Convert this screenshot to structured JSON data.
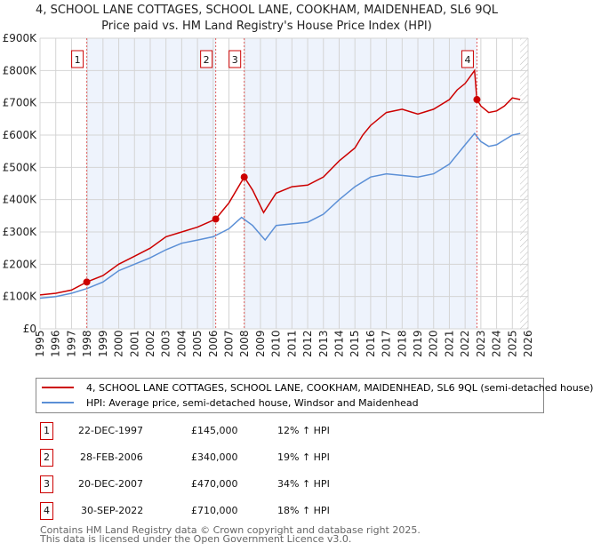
{
  "chart_data": {
    "type": "line",
    "title": "4, SCHOOL LANE COTTAGES, SCHOOL LANE, COOKHAM, MAIDENHEAD, SL6 9QL",
    "subtitle": "Price paid vs. HM Land Registry's House Price Index (HPI)",
    "xlim": [
      1995,
      2026
    ],
    "ylim": [
      0,
      900000
    ],
    "y_ticks": [
      {
        "v": 0,
        "label": "£0"
      },
      {
        "v": 100000,
        "label": "£100K"
      },
      {
        "v": 200000,
        "label": "£200K"
      },
      {
        "v": 300000,
        "label": "£300K"
      },
      {
        "v": 400000,
        "label": "£400K"
      },
      {
        "v": 500000,
        "label": "£500K"
      },
      {
        "v": 600000,
        "label": "£600K"
      },
      {
        "v": 700000,
        "label": "£700K"
      },
      {
        "v": 800000,
        "label": "£800K"
      },
      {
        "v": 900000,
        "label": "£900K"
      }
    ],
    "x_ticks": [
      "1995",
      "1996",
      "1997",
      "1998",
      "1999",
      "2000",
      "2001",
      "2002",
      "2003",
      "2004",
      "2005",
      "2006",
      "2007",
      "2008",
      "2009",
      "2010",
      "2011",
      "2012",
      "2013",
      "2014",
      "2015",
      "2016",
      "2017",
      "2018",
      "2019",
      "2020",
      "2021",
      "2022",
      "2023",
      "2024",
      "2025",
      "2026"
    ],
    "grid": true,
    "series": [
      {
        "name": "4, SCHOOL LANE COTTAGES, SCHOOL LANE, COOKHAM, MAIDENHEAD, SL6 9QL (semi-detached house)",
        "color": "#cc0000",
        "x": [
          1995,
          1996,
          1997,
          1997.97,
          1999,
          2000,
          2001,
          2002,
          2003,
          2004,
          2005,
          2006.16,
          2007,
          2007.97,
          2008.5,
          2009.2,
          2010,
          2011,
          2012,
          2013,
          2014,
          2015,
          2015.5,
          2016,
          2017,
          2018,
          2019,
          2020,
          2021,
          2021.5,
          2022,
          2022.6,
          2022.75,
          2023,
          2023.5,
          2024,
          2024.5,
          2025,
          2025.5
        ],
        "y": [
          105000,
          110000,
          120000,
          145000,
          165000,
          200000,
          225000,
          250000,
          285000,
          300000,
          315000,
          340000,
          390000,
          470000,
          430000,
          360000,
          420000,
          440000,
          445000,
          470000,
          520000,
          560000,
          600000,
          630000,
          670000,
          680000,
          665000,
          680000,
          710000,
          740000,
          760000,
          800000,
          710000,
          690000,
          670000,
          675000,
          690000,
          715000,
          710000
        ]
      },
      {
        "name": "HPI: Average price, semi-detached house, Windsor and Maidenhead",
        "color": "#5b8fd6",
        "x": [
          1995,
          1996,
          1997,
          1998,
          1999,
          2000,
          2001,
          2002,
          2003,
          2004,
          2005,
          2006,
          2007,
          2007.8,
          2008.5,
          2009.3,
          2010,
          2011,
          2012,
          2013,
          2014,
          2015,
          2016,
          2017,
          2018,
          2019,
          2020,
          2021,
          2021.5,
          2022,
          2022.6,
          2023,
          2023.5,
          2024,
          2024.5,
          2025,
          2025.5
        ],
        "y": [
          95000,
          100000,
          110000,
          125000,
          145000,
          180000,
          200000,
          220000,
          245000,
          265000,
          275000,
          285000,
          310000,
          345000,
          320000,
          275000,
          320000,
          325000,
          330000,
          355000,
          400000,
          440000,
          470000,
          480000,
          475000,
          470000,
          480000,
          510000,
          540000,
          570000,
          605000,
          580000,
          565000,
          570000,
          585000,
          600000,
          605000
        ]
      }
    ],
    "sales": [
      {
        "n": "1",
        "x": 1997.97,
        "y": 145000
      },
      {
        "n": "2",
        "x": 2006.16,
        "y": 340000
      },
      {
        "n": "3",
        "x": 2007.97,
        "y": 470000
      },
      {
        "n": "4",
        "x": 2022.75,
        "y": 710000
      }
    ]
  },
  "table": [
    {
      "n": "1",
      "date": "22-DEC-1997",
      "price": "£145,000",
      "hpi": "12% ↑ HPI"
    },
    {
      "n": "2",
      "date": "28-FEB-2006",
      "price": "£340,000",
      "hpi": "19% ↑ HPI"
    },
    {
      "n": "3",
      "date": "20-DEC-2007",
      "price": "£470,000",
      "hpi": "34% ↑ HPI"
    },
    {
      "n": "4",
      "date": "30-SEP-2022",
      "price": "£710,000",
      "hpi": "18% ↑ HPI"
    }
  ],
  "footer": {
    "line1": "Contains HM Land Registry data © Crown copyright and database right 2025.",
    "line2": "This data is licensed under the Open Government Licence v3.0."
  }
}
